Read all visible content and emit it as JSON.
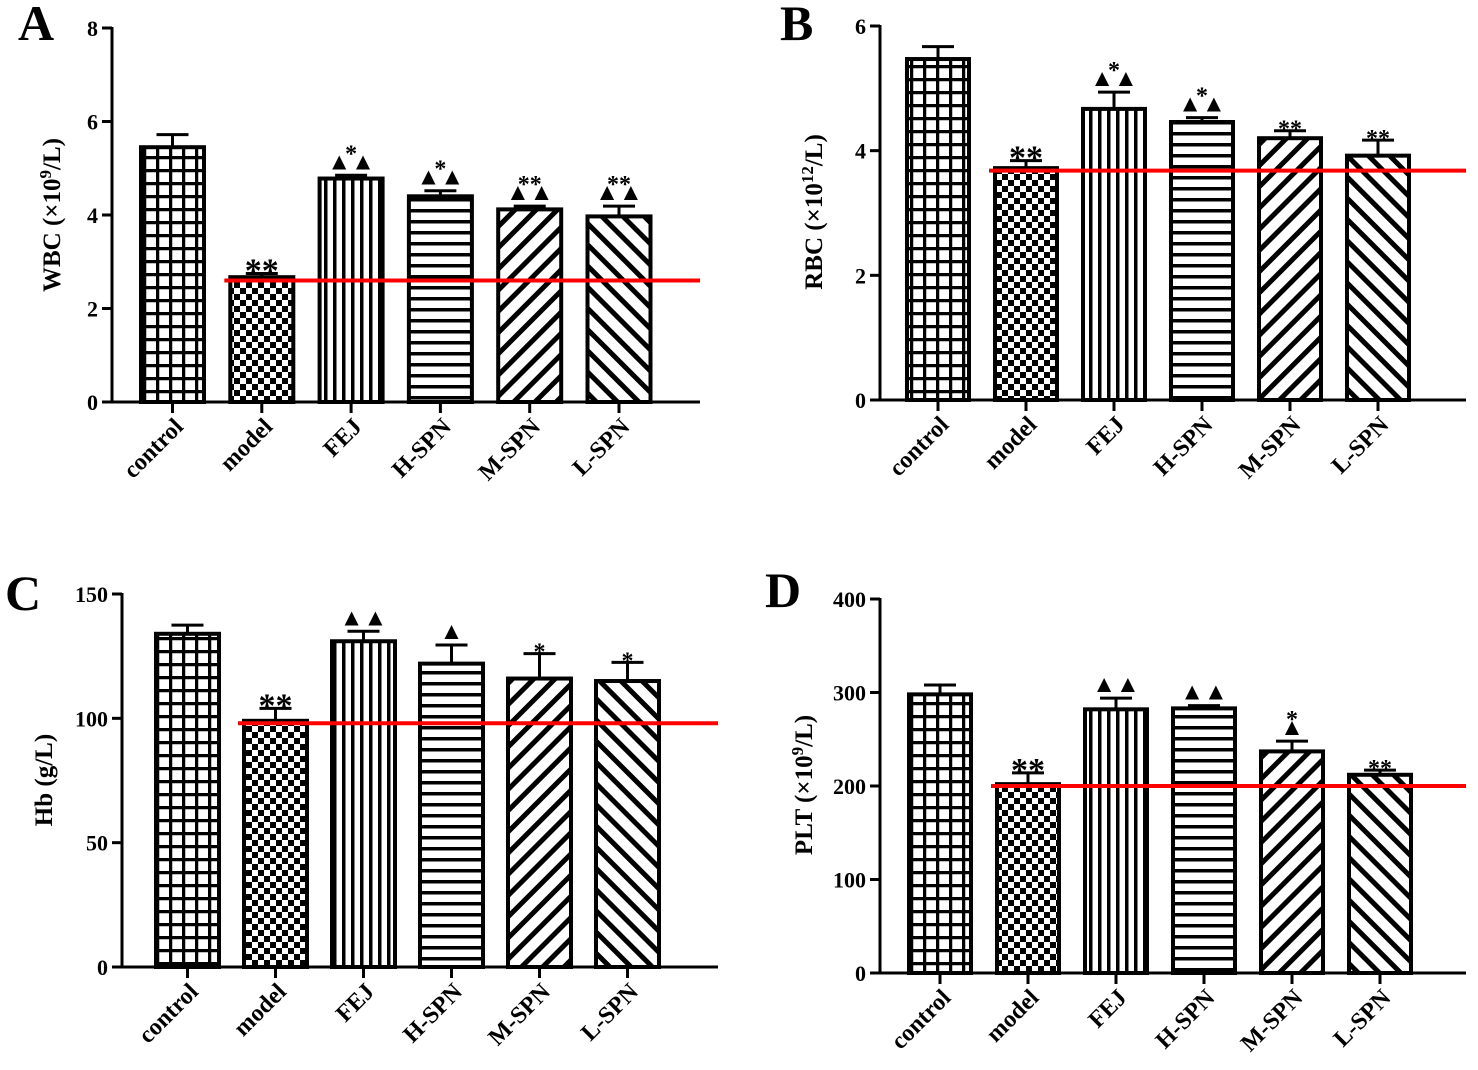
{
  "figure": {
    "type": "multi-panel bar chart"
  },
  "patterns": {
    "control": "grid",
    "model": "checker",
    "FEJ": "vertical",
    "H-SPN": "horizontal",
    "M-SPN": "diag-up",
    "L-SPN": "diag-down"
  },
  "colors": {
    "bar_stroke": "#000000",
    "bar_fill": "#ffffff",
    "reference_line": "#ff0000"
  },
  "chart_data": [
    {
      "panel": "A",
      "type": "bar",
      "ylabel": {
        "base": "WBC (×10",
        "sup": "9",
        "tail": "/L)"
      },
      "categories": [
        "control",
        "model",
        "FEJ",
        "H-SPN",
        "M-SPN",
        "L-SPN"
      ],
      "values": [
        5.45,
        2.67,
        4.78,
        4.4,
        4.12,
        3.97
      ],
      "errors": [
        0.27,
        0.08,
        0.07,
        0.12,
        0.07,
        0.22
      ],
      "ylim": [
        0,
        8
      ],
      "yticks": [
        0,
        2,
        4,
        6,
        8
      ],
      "reference_line": 2.6,
      "annotations": [
        {
          "bar": 1,
          "marks": [
            "**"
          ]
        },
        {
          "bar": 2,
          "marks": [
            "*",
            "▲▲"
          ]
        },
        {
          "bar": 3,
          "marks": [
            "*",
            "▲▲"
          ]
        },
        {
          "bar": 4,
          "marks": [
            "**",
            "▲▲"
          ]
        },
        {
          "bar": 5,
          "marks": [
            "**",
            "▲▲"
          ]
        }
      ]
    },
    {
      "panel": "B",
      "type": "bar",
      "ylabel": {
        "base": "RBC (×10",
        "sup": "12",
        "tail": "/L)"
      },
      "categories": [
        "control",
        "model",
        "FEJ",
        "H-SPN",
        "M-SPN",
        "L-SPN"
      ],
      "values": [
        5.47,
        3.72,
        4.67,
        4.46,
        4.2,
        3.92
      ],
      "errors": [
        0.2,
        0.12,
        0.27,
        0.07,
        0.12,
        0.25
      ],
      "ylim": [
        0,
        6
      ],
      "yticks": [
        0,
        2,
        4,
        6
      ],
      "reference_line": 3.68,
      "annotations": [
        {
          "bar": 1,
          "marks": [
            "**"
          ]
        },
        {
          "bar": 2,
          "marks": [
            "*",
            "▲▲"
          ]
        },
        {
          "bar": 3,
          "marks": [
            "*",
            "▲▲"
          ]
        },
        {
          "bar": 4,
          "marks": [
            "**"
          ]
        },
        {
          "bar": 5,
          "marks": [
            "**"
          ]
        }
      ]
    },
    {
      "panel": "C",
      "type": "bar",
      "ylabel": {
        "base": "Hb (g/L)",
        "sup": "",
        "tail": ""
      },
      "categories": [
        "control",
        "model",
        "FEJ",
        "H-SPN",
        "M-SPN",
        "L-SPN"
      ],
      "values": [
        134,
        99,
        131,
        122,
        116,
        115
      ],
      "errors": [
        3.5,
        5,
        4,
        7.5,
        10,
        7.5
      ],
      "ylim": [
        0,
        150
      ],
      "yticks": [
        0,
        50,
        100,
        150
      ],
      "reference_line": 98,
      "annotations": [
        {
          "bar": 1,
          "marks": [
            "**"
          ]
        },
        {
          "bar": 2,
          "marks": [
            "▲▲"
          ]
        },
        {
          "bar": 3,
          "marks": [
            "▲"
          ]
        },
        {
          "bar": 4,
          "marks": [
            "*"
          ]
        },
        {
          "bar": 5,
          "marks": [
            "*"
          ]
        }
      ]
    },
    {
      "panel": "D",
      "type": "bar",
      "ylabel": {
        "base": "PLT (×10",
        "sup": "9",
        "tail": "/L)"
      },
      "categories": [
        "control",
        "model",
        "FEJ",
        "H-SPN",
        "M-SPN",
        "L-SPN"
      ],
      "values": [
        298,
        202,
        282,
        283,
        237,
        212
      ],
      "errors": [
        10,
        12,
        12,
        3,
        11,
        5
      ],
      "ylim": [
        0,
        400
      ],
      "yticks": [
        0,
        100,
        200,
        300,
        400
      ],
      "reference_line": 200,
      "annotations": [
        {
          "bar": 1,
          "marks": [
            "**"
          ]
        },
        {
          "bar": 2,
          "marks": [
            "▲▲"
          ]
        },
        {
          "bar": 3,
          "marks": [
            "▲▲"
          ]
        },
        {
          "bar": 4,
          "marks": [
            "*",
            "▲"
          ]
        },
        {
          "bar": 5,
          "marks": [
            "**"
          ]
        }
      ]
    }
  ]
}
